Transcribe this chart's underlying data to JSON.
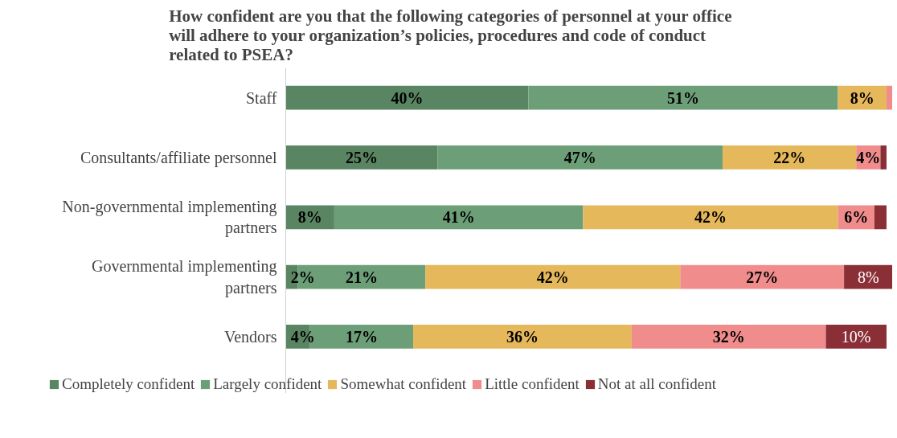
{
  "chart_data": {
    "type": "bar",
    "orientation": "horizontal",
    "stacked": true,
    "title": "How confident are you that the following categories of personnel at your office will adhere to your organization’s policies, procedures and code of conduct related to PSEA?",
    "categories": [
      "Staff",
      "Consultants/affiliate personnel",
      "Non-governmental implementing partners",
      "Governmental implementing partners",
      "Vendors"
    ],
    "series": [
      {
        "name": "Completely confident",
        "color": "#5a8562",
        "values": [
          40,
          25,
          8,
          2,
          4
        ],
        "value_labels": [
          "40%",
          "25%",
          "8%",
          "2%",
          "4%"
        ]
      },
      {
        "name": "Largely confident",
        "color": "#6c9f78",
        "values": [
          51,
          47,
          41,
          21,
          17
        ],
        "value_labels": [
          "51%",
          "47%",
          "41%",
          "21%",
          "17%"
        ]
      },
      {
        "name": "Somewhat confident",
        "color": "#e6b85c",
        "values": [
          8,
          22,
          42,
          42,
          36
        ],
        "value_labels": [
          "8%",
          "22%",
          "42%",
          "42%",
          "36%"
        ]
      },
      {
        "name": "Little confident",
        "color": "#f08c8c",
        "values": [
          1,
          4,
          6,
          27,
          32
        ],
        "value_labels": [
          null,
          "4%",
          "6%",
          "27%",
          "32%"
        ]
      },
      {
        "name": "Not at all confident",
        "color": "#8b2f37",
        "values": [
          0,
          1,
          2,
          8,
          10
        ],
        "value_labels": [
          null,
          null,
          null,
          "8%",
          "10%"
        ]
      }
    ],
    "legend": "bottom",
    "grid": false
  }
}
